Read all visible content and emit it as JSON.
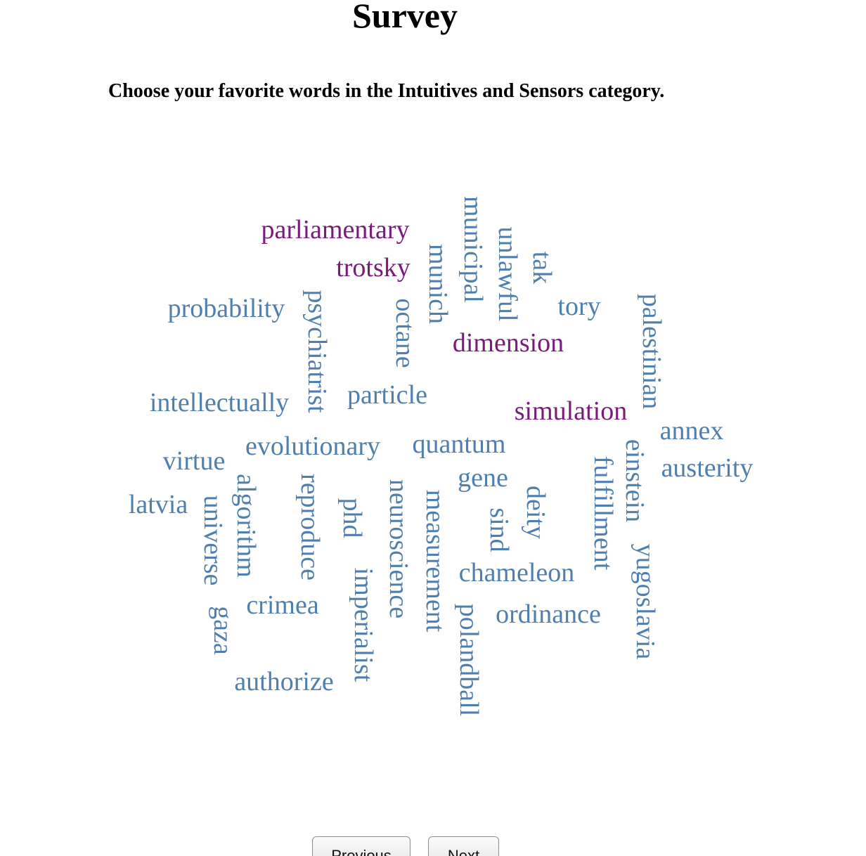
{
  "page": {
    "title": "Survey",
    "prompt": "Choose your favorite words in the Intuitives and Sensors category."
  },
  "colors": {
    "unselected_word": "#4f7fae",
    "selected_word": "#7a1a7a"
  },
  "words": [
    {
      "text": "parliamentary",
      "selected": true,
      "vertical": false
    },
    {
      "text": "trotsky",
      "selected": true,
      "vertical": false
    },
    {
      "text": "municipal",
      "selected": false,
      "vertical": true
    },
    {
      "text": "unlawful",
      "selected": false,
      "vertical": true
    },
    {
      "text": "tak",
      "selected": false,
      "vertical": true
    },
    {
      "text": "munich",
      "selected": false,
      "vertical": true
    },
    {
      "text": "probability",
      "selected": false,
      "vertical": false
    },
    {
      "text": "psychiatrist",
      "selected": false,
      "vertical": true
    },
    {
      "text": "octane",
      "selected": false,
      "vertical": true
    },
    {
      "text": "tory",
      "selected": false,
      "vertical": false
    },
    {
      "text": "palestinian",
      "selected": false,
      "vertical": true
    },
    {
      "text": "dimension",
      "selected": true,
      "vertical": false
    },
    {
      "text": "intellectually",
      "selected": false,
      "vertical": false
    },
    {
      "text": "particle",
      "selected": false,
      "vertical": false
    },
    {
      "text": "simulation",
      "selected": true,
      "vertical": false
    },
    {
      "text": "annex",
      "selected": false,
      "vertical": false
    },
    {
      "text": "evolutionary",
      "selected": false,
      "vertical": false
    },
    {
      "text": "quantum",
      "selected": false,
      "vertical": false
    },
    {
      "text": "virtue",
      "selected": false,
      "vertical": false
    },
    {
      "text": "einstein",
      "selected": false,
      "vertical": true
    },
    {
      "text": "austerity",
      "selected": false,
      "vertical": false
    },
    {
      "text": "gene",
      "selected": false,
      "vertical": false
    },
    {
      "text": "fulfillment",
      "selected": false,
      "vertical": true
    },
    {
      "text": "latvia",
      "selected": false,
      "vertical": false
    },
    {
      "text": "algorithm",
      "selected": false,
      "vertical": true
    },
    {
      "text": "reproduce",
      "selected": false,
      "vertical": true
    },
    {
      "text": "phd",
      "selected": false,
      "vertical": true
    },
    {
      "text": "neuroscience",
      "selected": false,
      "vertical": true
    },
    {
      "text": "measurement",
      "selected": false,
      "vertical": true
    },
    {
      "text": "deity",
      "selected": false,
      "vertical": true
    },
    {
      "text": "sind",
      "selected": false,
      "vertical": true
    },
    {
      "text": "universe",
      "selected": false,
      "vertical": true
    },
    {
      "text": "yugoslavia",
      "selected": false,
      "vertical": true
    },
    {
      "text": "chameleon",
      "selected": false,
      "vertical": false
    },
    {
      "text": "crimea",
      "selected": false,
      "vertical": false
    },
    {
      "text": "imperialist",
      "selected": false,
      "vertical": true
    },
    {
      "text": "ordinance",
      "selected": false,
      "vertical": false
    },
    {
      "text": "gaza",
      "selected": false,
      "vertical": true
    },
    {
      "text": "polandball",
      "selected": false,
      "vertical": true
    },
    {
      "text": "authorize",
      "selected": false,
      "vertical": false
    }
  ],
  "navigation": {
    "previous_label": "Previous",
    "next_label": "Next"
  }
}
